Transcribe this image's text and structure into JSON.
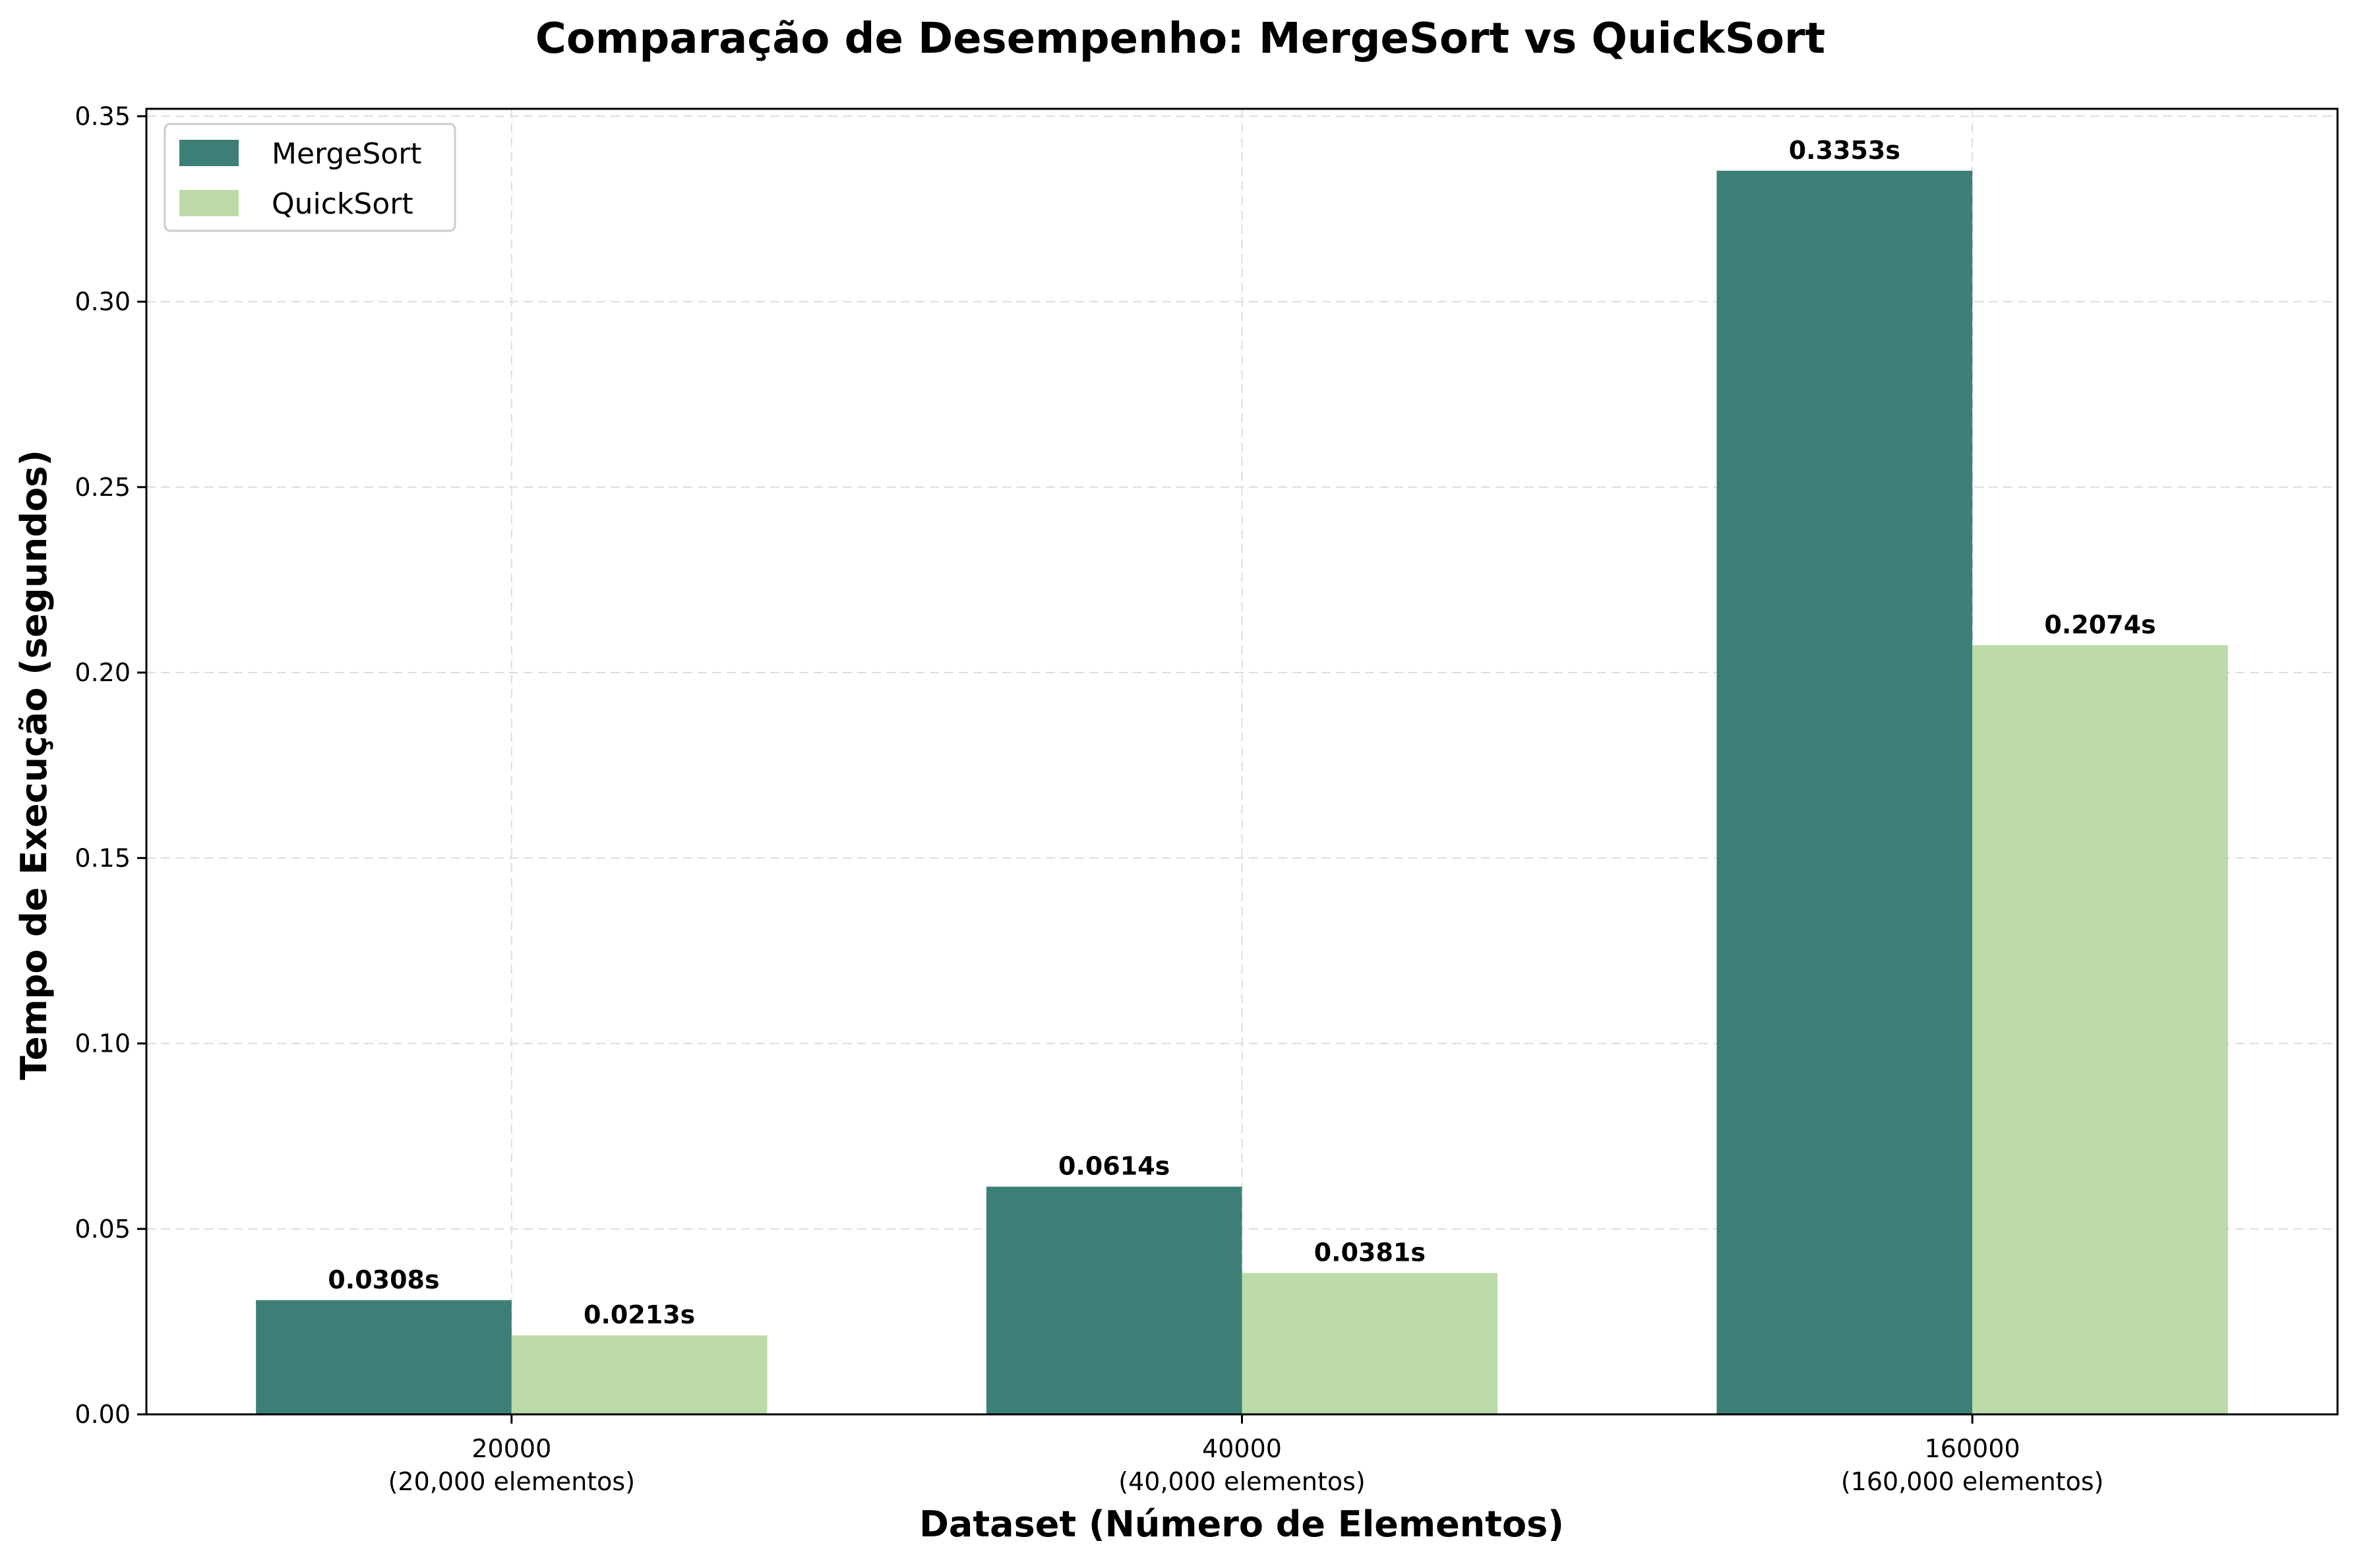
{
  "chart_data": {
    "type": "bar",
    "title": "Comparação de Desempenho: MergeSort vs QuickSort",
    "xlabel": "Dataset (Número de Elementos)",
    "ylabel": "Tempo de Execução (segundos)",
    "categories": [
      "20000",
      "40000",
      "160000"
    ],
    "category_sublabels": [
      "(20,000 elementos)",
      "(40,000 elementos)",
      "(160,000 elementos)"
    ],
    "series": [
      {
        "name": "MergeSort",
        "color": "#3d7f77",
        "values": [
          0.0308,
          0.0614,
          0.3353
        ],
        "value_labels": [
          "0.0308s",
          "0.0614s",
          "0.3353s"
        ]
      },
      {
        "name": "QuickSort",
        "color": "#bbdaa8",
        "values": [
          0.0213,
          0.0381,
          0.2074
        ],
        "value_labels": [
          "0.0213s",
          "0.0381s",
          "0.2074s"
        ]
      }
    ],
    "ylim": [
      0,
      0.352
    ],
    "yticks": [
      0.0,
      0.05,
      0.1,
      0.15,
      0.2,
      0.25,
      0.3,
      0.35
    ],
    "ytick_labels": [
      "0.00",
      "0.05",
      "0.10",
      "0.15",
      "0.20",
      "0.25",
      "0.30",
      "0.35"
    ],
    "grid": true,
    "legend_position": "top-left"
  }
}
